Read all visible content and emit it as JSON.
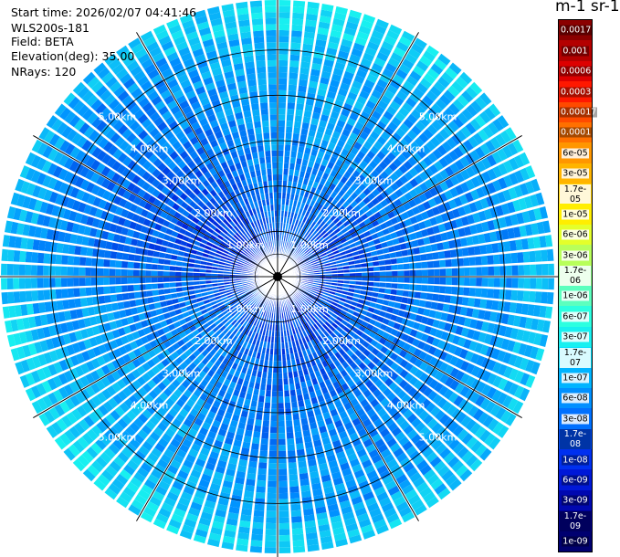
{
  "header": {
    "start_time": "Start time: 2026/02/07 04:41:46",
    "instrument": "WLS200s-181",
    "field": "Field: BETA",
    "elevation": "Elevation(deg): 35.00",
    "nrays": "NRays: 120"
  },
  "colorbar": {
    "unit_title": "m-1 sr-1",
    "labels": [
      "0.0017",
      "0.001",
      "0.0006",
      "0.0003",
      "0.00017",
      "0.0001",
      "6e-05",
      "3e-05",
      "1.7e-05",
      "1e-05",
      "6e-06",
      "3e-06",
      "1.7e-06",
      "1e-06",
      "6e-07",
      "3e-07",
      "1.7e-07",
      "1e-07",
      "6e-08",
      "3e-08",
      "1.7e-08",
      "1e-08",
      "6e-09",
      "3e-09",
      "1.7e-09",
      "1e-09"
    ],
    "colors": [
      "#8b0000",
      "#b40000",
      "#dd0000",
      "#ff1800",
      "#ff4a00",
      "#ff7000",
      "#ff9600",
      "#ffb400",
      "#ffd000",
      "#ffee00",
      "#e4ff2a",
      "#b8ff5a",
      "#8cff8a",
      "#5cffbe",
      "#2cffe0",
      "#18f0f0",
      "#00e0ff",
      "#00b4ff",
      "#0090ff",
      "#0070ff",
      "#0050ff",
      "#0030f0",
      "#0018d8",
      "#0008b0",
      "#000090",
      "#000070"
    ],
    "dark_label_indices": [
      0,
      1,
      2,
      3,
      4,
      5,
      20,
      21,
      22,
      23,
      24,
      25
    ]
  },
  "chart_data": {
    "type": "heatmap",
    "projection": "polar",
    "field": "BETA",
    "elevation_deg": 35.0,
    "n_rays": 120,
    "range_ring_labels": [
      "1.00km",
      "2.00km",
      "3.00km",
      "4.00km",
      "5.00km"
    ],
    "range_ring_km": [
      1,
      2,
      3,
      4,
      5
    ],
    "max_range_km": 6.1,
    "color_scale": "log",
    "value_range": [
      1e-09,
      0.0017
    ],
    "typical_value_range": [
      3e-08,
      1.7e-07
    ],
    "near_range_values": [
      3e-09,
      3e-08
    ],
    "color_low": "#0018d8",
    "color_mid": "#0090ff",
    "color_high": "#18f0f0"
  }
}
